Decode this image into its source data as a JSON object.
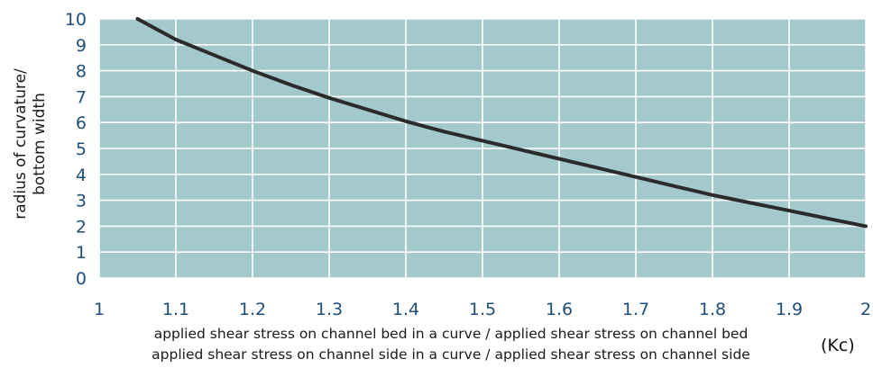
{
  "chart_data": {
    "type": "line",
    "title": "",
    "ylabel_lines": [
      "radius of curvature/",
      "bottom width"
    ],
    "xlabel_lines": [
      "applied shear stress on channel bed in a curve / applied shear stress on channel bed",
      "applied shear stress on channel side in a curve / applied shear stress on channel side"
    ],
    "x_unit": "(Kc)",
    "xlim": [
      1,
      2
    ],
    "ylim": [
      0,
      10
    ],
    "x_ticks": [
      "1",
      "1.1",
      "1.2",
      "1.3",
      "1.4",
      "1.5",
      "1.6",
      "1.7",
      "1.8",
      "1.9",
      "2"
    ],
    "y_ticks": [
      "0",
      "1",
      "2",
      "3",
      "4",
      "5",
      "6",
      "7",
      "8",
      "9",
      "10"
    ],
    "grid": true,
    "colors": {
      "plot_background": "#a3c9cd",
      "grid": "#ffffff",
      "line": "#2b2b2b",
      "tick_text": "#1f4e79"
    },
    "series": [
      {
        "x": [
          1.05,
          1.1,
          1.15,
          1.2,
          1.25,
          1.3,
          1.35,
          1.4,
          1.45,
          1.5,
          1.55,
          1.6,
          1.65,
          1.7,
          1.75,
          1.8,
          1.85,
          1.9,
          1.95,
          2.0
        ],
        "y": [
          10.0,
          9.2,
          8.6,
          8.0,
          7.45,
          6.95,
          6.5,
          6.05,
          5.65,
          5.3,
          4.95,
          4.6,
          4.25,
          3.9,
          3.55,
          3.2,
          2.9,
          2.6,
          2.3,
          2.0
        ]
      }
    ]
  }
}
